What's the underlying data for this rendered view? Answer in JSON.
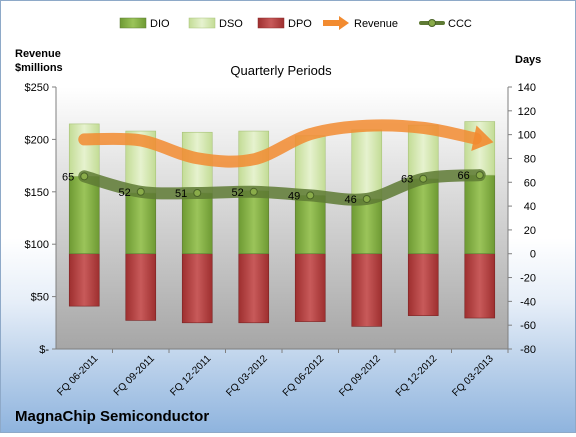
{
  "company": "MagnaChip Semiconductor",
  "chart_data": {
    "type": "bar",
    "title": "Quarterly Periods",
    "left_axis_label": [
      "Revenue",
      "$millions"
    ],
    "right_axis_label": "Days",
    "categories": [
      "FQ 06-2011",
      "FQ 09-2011",
      "FQ 12-2011",
      "FQ 03-2012",
      "FQ 06-2012",
      "FQ 09-2012",
      "FQ 12-2012",
      "FQ 03-2013"
    ],
    "left_ylim": [
      0,
      250
    ],
    "left_ticks": [
      0,
      50,
      100,
      150,
      200,
      250
    ],
    "left_tick_labels": [
      "$-",
      "$50",
      "$100",
      "$150",
      "$200",
      "$250"
    ],
    "right_ylim": [
      -80,
      140
    ],
    "right_ticks": [
      -80,
      -60,
      -40,
      -20,
      0,
      20,
      40,
      60,
      80,
      100,
      120,
      140
    ],
    "legend_position": "top",
    "grid": false,
    "series": [
      {
        "name": "DIO",
        "kind": "bar-stack-positive",
        "axis": "right",
        "color": "#7fae3f",
        "values": [
          65,
          51,
          51,
          53,
          49,
          46,
          63,
          66
        ]
      },
      {
        "name": "DSO",
        "kind": "bar-stack-positive",
        "axis": "right",
        "color": "#d6e9b0",
        "values": [
          44,
          52,
          51,
          50,
          50,
          58,
          45,
          45
        ]
      },
      {
        "name": "DPO",
        "kind": "bar-negative",
        "axis": "right",
        "color": "#b53c3c",
        "values": [
          -44,
          -56,
          -58,
          -58,
          -57,
          -61,
          -52,
          -54
        ]
      },
      {
        "name": "Revenue",
        "kind": "line",
        "axis": "left",
        "color": "#f28b30",
        "values": [
          200,
          199,
          182,
          181,
          205,
          213,
          211,
          200
        ]
      },
      {
        "name": "CCC",
        "kind": "line-markers",
        "axis": "right",
        "color": "#5e7a34",
        "values": [
          65,
          52,
          51,
          52,
          49,
          46,
          63,
          66
        ]
      }
    ]
  },
  "colors": {
    "plot_top": "#ffffff",
    "plot_bottom": "#a6a6a6",
    "axis": "#7f7f7f",
    "text": "#000000"
  }
}
